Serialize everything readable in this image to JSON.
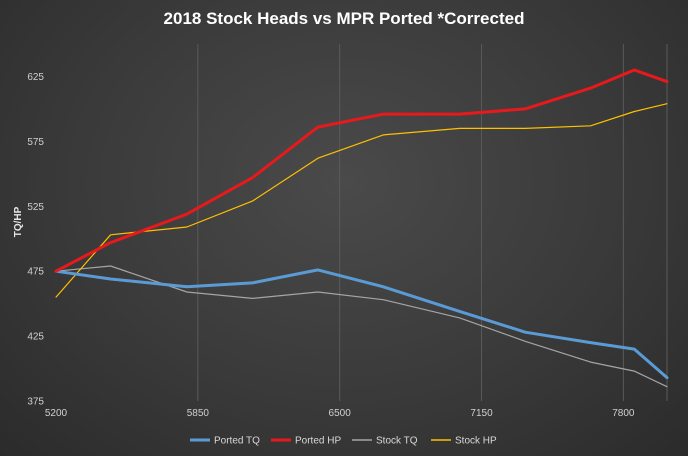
{
  "chart_data": {
    "type": "line",
    "title": "2018 Stock Heads vs MPR Ported *Corrected",
    "xlabel": "",
    "ylabel": "TQ/HP",
    "xlim": [
      5200,
      8000
    ],
    "ylim": [
      375,
      650
    ],
    "x_ticks": [
      5200,
      5850,
      6500,
      7150,
      7800
    ],
    "y_ticks": [
      375,
      425,
      475,
      525,
      575,
      625
    ],
    "grid": "vertical",
    "legend_position": "bottom",
    "x": [
      5200,
      5450,
      5800,
      6100,
      6400,
      6700,
      7050,
      7350,
      7650,
      7850,
      8000
    ],
    "series": [
      {
        "name": "Ported TQ",
        "color": "#5b9bd5",
        "width": 3,
        "values": [
          475,
          469,
          463,
          466,
          476,
          463,
          444,
          428,
          420,
          415,
          393
        ]
      },
      {
        "name": "Ported HP",
        "color": "#e8191c",
        "width": 3,
        "values": [
          475,
          497,
          519,
          547,
          586,
          596,
          596,
          600,
          616,
          630,
          621
        ]
      },
      {
        "name": "Stock TQ",
        "color": "#a5a5a5",
        "width": 1.2,
        "values": [
          475,
          479,
          459,
          454,
          459,
          453,
          439,
          421,
          405,
          398,
          386
        ]
      },
      {
        "name": "Stock HP",
        "color": "#ffc000",
        "width": 1.2,
        "values": [
          455,
          503,
          509,
          529,
          562,
          580,
          585,
          585,
          587,
          598,
          604
        ]
      }
    ]
  }
}
